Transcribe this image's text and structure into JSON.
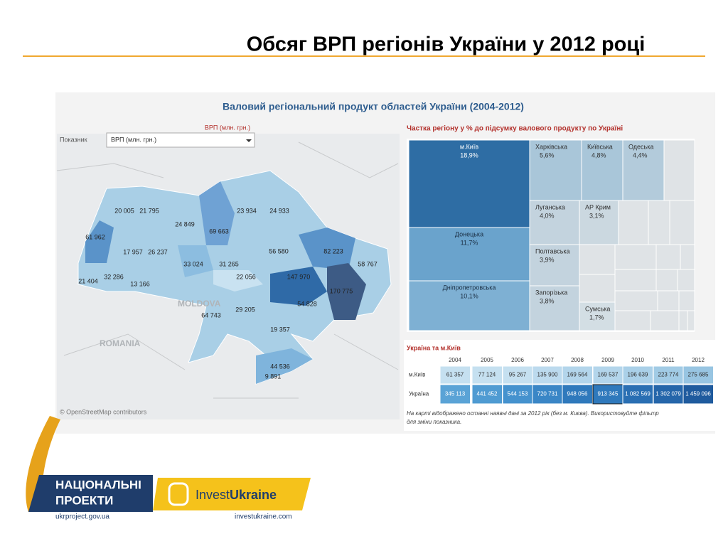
{
  "slide": {
    "title": "Обсяг ВРП регіонів України у 2012 році"
  },
  "dashboard": {
    "title": "Валовий регіональний продукт областей України (2004-2012)"
  },
  "map": {
    "heading": "ВРП (млн. грн.)",
    "filter_label": "Показник",
    "filter_value": "ВРП (млн. грн.)",
    "labels": [
      "20 005",
      "21 795",
      "24 849",
      "23 934",
      "24 933",
      "69 663",
      "61 962",
      "17 957",
      "26 237",
      "56 580",
      "82 223",
      "33 024",
      "31 265",
      "58 767",
      "22 056",
      "147 970",
      "21 404",
      "32 286",
      "13 166",
      "170 775",
      "54 828",
      "64 743",
      "29 205",
      "19 357",
      "44 536",
      "9 891"
    ],
    "countries": [
      "MOLDOVA",
      "ROMANIA"
    ],
    "attribution": "© OpenStreetMap contributors"
  },
  "treemap": {
    "title": "Частка регіону у % до підсумку валового продукту по Україні",
    "cells": [
      {
        "name": "м.Київ",
        "share": "18,9%"
      },
      {
        "name": "Донецька",
        "share": "11,7%"
      },
      {
        "name": "Дніпропетровська",
        "share": "10,1%"
      },
      {
        "name": "Харківська",
        "share": "5,6%"
      },
      {
        "name": "Київська",
        "share": "4,8%"
      },
      {
        "name": "Одеська",
        "share": "4,4%"
      },
      {
        "name": "Луганська",
        "share": "4,0%"
      },
      {
        "name": "АР Крим",
        "share": "3,1%"
      },
      {
        "name": "Полтавська",
        "share": "3,9%"
      },
      {
        "name": "Запорізька",
        "share": "3,8%"
      },
      {
        "name": "Сумська",
        "share": "1,7%"
      }
    ]
  },
  "table": {
    "title": "Україна та м.Київ",
    "columns": [
      "2004",
      "2005",
      "2006",
      "2007",
      "2008",
      "2009",
      "2010",
      "2011",
      "2012"
    ],
    "rows": [
      [
        "м.Київ",
        "61 357",
        "77 124",
        "95 267",
        "135 900",
        "169 564",
        "169 537",
        "196 639",
        "223 774",
        "275 685"
      ],
      [
        "Україна",
        "345 113",
        "441 452",
        "544 153",
        "720 731",
        "948 056",
        "913 345",
        "1 082 569",
        "1 302 079",
        "1 459 096"
      ]
    ],
    "note": [
      "На карті відображено останні наявні  дані за 2012 рік (без м. Києва). Використовуйте фільтр",
      "для зміни показника."
    ]
  },
  "logos": {
    "national": [
      "НАЦІОНАЛЬНІ",
      "ПРОЕКТИ"
    ],
    "national_url": "ukrproject.gov.ua",
    "invest_a": "Invest",
    "invest_b": "Ukraine",
    "invest_url": "investukraine.com"
  }
}
